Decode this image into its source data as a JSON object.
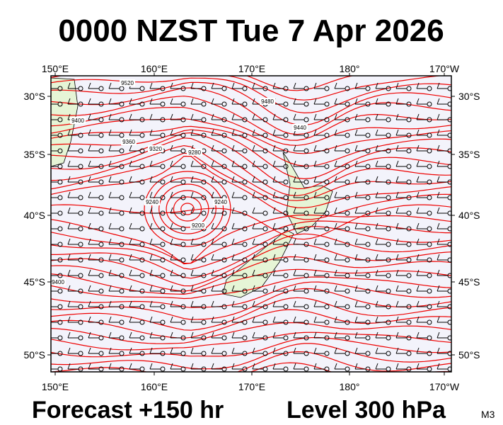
{
  "header": {
    "title": "0000 NZST Tue 7 Apr 2026"
  },
  "map": {
    "top_labels": [
      "150°E",
      "160°E",
      "170°E",
      "180°",
      "170°W"
    ],
    "bottom_labels": [
      "150°E",
      "160°E",
      "170°E",
      "180°",
      "170°W"
    ],
    "left_labels": [
      "30°S",
      "35°S",
      "40°S",
      "45°S",
      "50°S"
    ],
    "right_labels": [
      "30°S",
      "35°S",
      "40°S",
      "45°S",
      "50°S"
    ],
    "contour_labels": [
      "9520",
      "9480",
      "9440",
      "9400",
      "9360",
      "9320",
      "9280",
      "9240",
      "9200",
      "9240",
      "9400"
    ]
  },
  "footer": {
    "forecast": "Forecast +150 hr",
    "level": "Level 300 hPa",
    "code": "M3"
  }
}
